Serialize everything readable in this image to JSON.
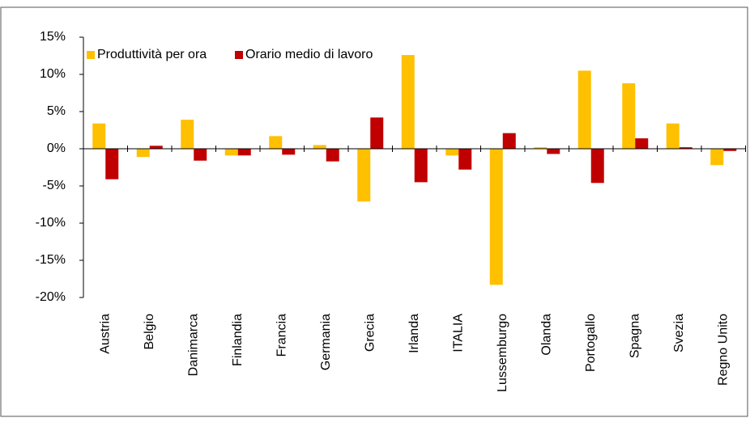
{
  "chart_data": {
    "type": "bar",
    "categories": [
      "Austria",
      "Belgio",
      "Danimarca",
      "Finlandia",
      "Francia",
      "Germania",
      "Grecia",
      "Irlanda",
      "ITALIA",
      "Lussemburgo",
      "Olanda",
      "Portogallo",
      "Spagna",
      "Svezia",
      "Regno Unito"
    ],
    "series": [
      {
        "name": "Produttività per ora",
        "color": "#ffc000",
        "values": [
          3.4,
          -1.1,
          3.9,
          -0.9,
          1.7,
          0.5,
          -7.1,
          12.6,
          -0.9,
          -18.3,
          0.2,
          10.5,
          8.8,
          3.4,
          -2.2
        ]
      },
      {
        "name": "Orario medio di lavoro",
        "color": "#c00000",
        "values": [
          -4.1,
          0.4,
          -1.6,
          -0.9,
          -0.8,
          -1.7,
          4.2,
          -4.5,
          -2.8,
          2.1,
          -0.7,
          -4.6,
          1.4,
          0.2,
          -0.3
        ]
      }
    ],
    "ylim": [
      -20,
      15
    ],
    "yticks": [
      {
        "value": -20,
        "label": "-20%"
      },
      {
        "value": -15,
        "label": "-15%"
      },
      {
        "value": -10,
        "label": "-10%"
      },
      {
        "value": -5,
        "label": "-5%"
      },
      {
        "value": 0,
        "label": "0%"
      },
      {
        "value": 5,
        "label": "5%"
      },
      {
        "value": 10,
        "label": "10%"
      },
      {
        "value": 15,
        "label": "15%"
      }
    ],
    "grid": false,
    "legend": "top-left"
  }
}
